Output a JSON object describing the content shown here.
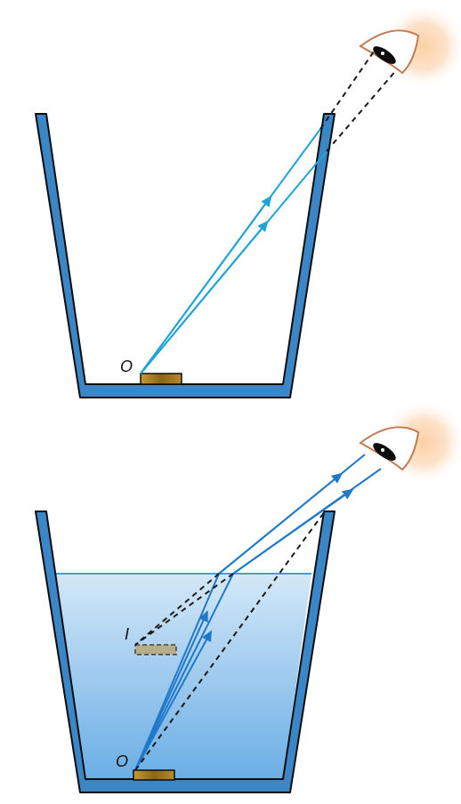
{
  "figure_top": {
    "labels": {
      "object": "O"
    }
  },
  "figure_bottom": {
    "labels": {
      "object": "O",
      "image": "I"
    }
  },
  "colors": {
    "container_wall": "#3a86c6",
    "container_outline": "#0d0d0d",
    "ray": "#1fa3d9",
    "ray_refracted": "#1f78c8",
    "sight_line": "#1a1a1a",
    "coin_fill": "#a07a1c",
    "water_top": "#d4e8f7",
    "water_bottom": "#6aaee6",
    "water_surface": "#4a9ed6",
    "eye_glow": "#fbd0a3",
    "eye_outline": "#c07b52"
  },
  "icons": {
    "observer": "eye-icon",
    "object": "coin-object",
    "image": "coin-virtual-image"
  }
}
